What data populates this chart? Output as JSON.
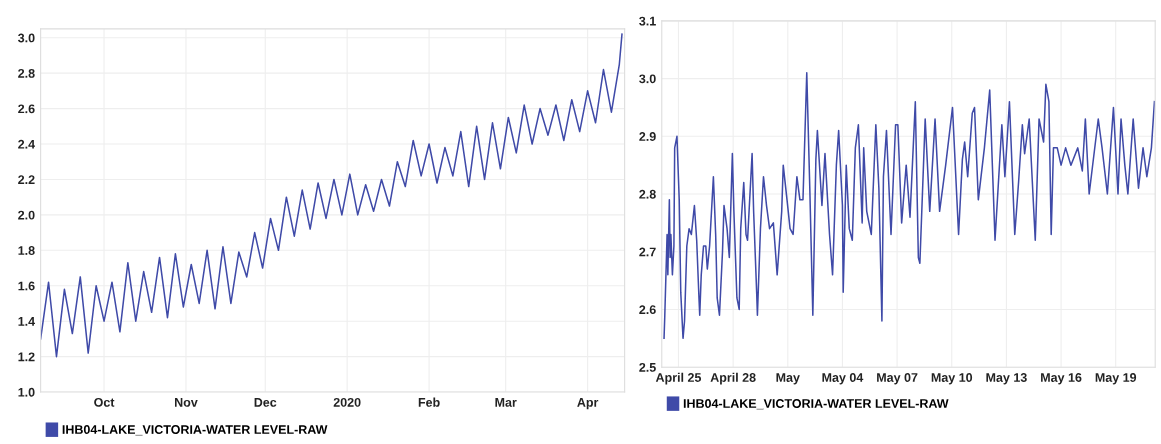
{
  "chart_data": [
    {
      "type": "line",
      "x": [
        "2019-09-07",
        "2019-09-10",
        "2019-09-13",
        "2019-09-16",
        "2019-09-19",
        "2019-09-22",
        "2019-09-25",
        "2019-09-28",
        "2019-10-01",
        "2019-10-04",
        "2019-10-07",
        "2019-10-10",
        "2019-10-13",
        "2019-10-16",
        "2019-10-19",
        "2019-10-22",
        "2019-10-25",
        "2019-10-28",
        "2019-10-31",
        "2019-11-03",
        "2019-11-06",
        "2019-11-09",
        "2019-11-12",
        "2019-11-15",
        "2019-11-18",
        "2019-11-21",
        "2019-11-24",
        "2019-11-27",
        "2019-11-30",
        "2019-12-03",
        "2019-12-06",
        "2019-12-09",
        "2019-12-12",
        "2019-12-15",
        "2019-12-18",
        "2019-12-21",
        "2019-12-24",
        "2019-12-27",
        "2019-12-30",
        "2020-01-02",
        "2020-01-05",
        "2020-01-08",
        "2020-01-11",
        "2020-01-14",
        "2020-01-17",
        "2020-01-20",
        "2020-01-23",
        "2020-01-26",
        "2020-01-29",
        "2020-02-01",
        "2020-02-04",
        "2020-02-07",
        "2020-02-10",
        "2020-02-13",
        "2020-02-16",
        "2020-02-19",
        "2020-02-22",
        "2020-02-25",
        "2020-02-28",
        "2020-03-02",
        "2020-03-05",
        "2020-03-08",
        "2020-03-11",
        "2020-03-14",
        "2020-03-17",
        "2020-03-20",
        "2020-03-23",
        "2020-03-26",
        "2020-03-29",
        "2020-04-01",
        "2020-04-04",
        "2020-04-07",
        "2020-04-10",
        "2020-04-13",
        "2020-04-14"
      ],
      "series": [
        {
          "name": "IHB04-LAKE_VICTORIA-WATER LEVEL-RAW",
          "color": "#3f4aa8",
          "values": [
            1.3,
            1.62,
            1.2,
            1.58,
            1.33,
            1.65,
            1.22,
            1.6,
            1.4,
            1.62,
            1.34,
            1.73,
            1.4,
            1.68,
            1.45,
            1.76,
            1.42,
            1.78,
            1.48,
            1.72,
            1.5,
            1.8,
            1.47,
            1.82,
            1.5,
            1.79,
            1.65,
            1.9,
            1.7,
            1.98,
            1.8,
            2.1,
            1.88,
            2.14,
            1.92,
            2.18,
            1.98,
            2.2,
            2.0,
            2.23,
            2.0,
            2.17,
            2.02,
            2.2,
            2.05,
            2.3,
            2.16,
            2.42,
            2.22,
            2.4,
            2.18,
            2.38,
            2.22,
            2.47,
            2.16,
            2.5,
            2.2,
            2.52,
            2.26,
            2.55,
            2.35,
            2.62,
            2.4,
            2.6,
            2.45,
            2.62,
            2.42,
            2.65,
            2.47,
            2.7,
            2.52,
            2.82,
            2.58,
            2.85,
            3.02
          ]
        }
      ],
      "xlim": [
        "2019-09-07",
        "2020-04-15"
      ],
      "xticks": [
        {
          "value": "2019-10-01",
          "label": "Oct"
        },
        {
          "value": "2019-11-01",
          "label": "Nov"
        },
        {
          "value": "2019-12-01",
          "label": "Dec"
        },
        {
          "value": "2020-01-01",
          "label": "2020"
        },
        {
          "value": "2020-02-01",
          "label": "Feb"
        },
        {
          "value": "2020-03-01",
          "label": "Mar"
        },
        {
          "value": "2020-04-01",
          "label": "Apr"
        }
      ],
      "ylim": [
        1.0,
        3.05
      ],
      "yticks": [
        {
          "value": 1.0,
          "label": "1.0"
        },
        1.2,
        1.4,
        1.6,
        1.8,
        {
          "value": 2.0,
          "label": "2.0"
        },
        2.2,
        2.4,
        2.6,
        2.8,
        {
          "value": 3.0,
          "label": "3.0"
        }
      ],
      "grid": true,
      "legend": "bottom"
    },
    {
      "type": "line",
      "x": [
        "2020-04-24T05:00",
        "2020-04-24T06:00",
        "2020-04-24T09:00",
        "2020-04-24T10:00",
        "2020-04-24T12:00",
        "2020-04-24T13:00",
        "2020-04-24T14:00",
        "2020-04-24T16:00",
        "2020-04-24T18:00",
        "2020-04-24T19:00",
        "2020-04-24T22:00",
        "2020-04-25T01:00",
        "2020-04-25T03:00",
        "2020-04-25T06:00",
        "2020-04-25T08:00",
        "2020-04-25T11:00",
        "2020-04-25T14:00",
        "2020-04-25T17:00",
        "2020-04-25T21:00",
        "2020-04-26T00:00",
        "2020-04-26T03:00",
        "2020-04-26T04:00",
        "2020-04-26T06:00",
        "2020-04-26T09:00",
        "2020-04-26T12:00",
        "2020-04-26T14:00",
        "2020-04-26T17:00",
        "2020-04-26T22:00",
        "2020-04-27T01:00",
        "2020-04-27T03:00",
        "2020-04-27T06:00",
        "2020-04-27T10:00",
        "2020-04-27T12:00",
        "2020-04-27T16:00",
        "2020-04-27T19:00",
        "2020-04-27T23:00",
        "2020-04-28T01:00",
        "2020-04-28T05:00",
        "2020-04-28T08:00",
        "2020-04-28T10:00",
        "2020-04-28T14:00",
        "2020-04-28T17:00",
        "2020-04-28T19:00",
        "2020-04-29T01:00",
        "2020-04-29T03:00",
        "2020-04-29T07:00",
        "2020-04-29T08:00",
        "2020-04-29T12:00",
        "2020-04-29T16:00",
        "2020-04-29T20:00",
        "2020-04-30T00:00",
        "2020-04-30T05:00",
        "2020-04-30T10:00",
        "2020-04-30T16:00",
        "2020-04-30T18:00",
        "2020-04-30T23:00",
        "2020-05-01T03:00",
        "2020-05-01T07:00",
        "2020-05-01T12:00",
        "2020-05-01T16:00",
        "2020-05-01T20:00",
        "2020-05-02T01:00",
        "2020-05-02T05:00",
        "2020-05-02T09:00",
        "2020-05-02T13:00",
        "2020-05-02T15:00",
        "2020-05-02T21:00",
        "2020-05-03T01:00",
        "2020-05-03T07:00",
        "2020-05-03T11:00",
        "2020-05-03T16:00",
        "2020-05-03T19:00",
        "2020-05-04T00:00",
        "2020-05-04T01:00",
        "2020-05-04T05:00",
        "2020-05-04T09:00",
        "2020-05-04T13:00",
        "2020-05-04T17:00",
        "2020-05-04T21:00",
        "2020-05-05T02:00",
        "2020-05-05T04:00",
        "2020-05-05T08:00",
        "2020-05-05T14:00",
        "2020-05-05T20:00",
        "2020-05-06T00:00",
        "2020-05-06T04:00",
        "2020-05-06T06:00",
        "2020-05-06T10:00",
        "2020-05-06T16:00",
        "2020-05-06T22:00",
        "2020-05-07T01:00",
        "2020-05-07T06:00",
        "2020-05-07T12:00",
        "2020-05-07T17:00",
        "2020-05-08T00:00",
        "2020-05-08T04:00",
        "2020-05-08T06:00",
        "2020-05-08T13:00",
        "2020-05-08T19:00",
        "2020-05-09T02:00",
        "2020-05-09T08:00",
        "2020-05-09T16:00",
        "2020-05-10T01:00",
        "2020-05-10T09:00",
        "2020-05-10T14:00",
        "2020-05-10T17:00",
        "2020-05-10T21:00",
        "2020-05-11T03:00",
        "2020-05-11T06:00",
        "2020-05-11T11:00",
        "2020-05-11T19:00",
        "2020-05-12T02:00",
        "2020-05-12T09:00",
        "2020-05-12T18:00",
        "2020-05-12T22:00",
        "2020-05-13T04:00",
        "2020-05-13T11:00",
        "2020-05-13T16:00",
        "2020-05-13T21:00",
        "2020-05-14T00:00",
        "2020-05-14T06:00",
        "2020-05-14T14:00",
        "2020-05-14T19:00",
        "2020-05-15T01:00",
        "2020-05-15T04:00",
        "2020-05-15T08:00",
        "2020-05-15T11:00",
        "2020-05-15T14:00",
        "2020-05-15T19:00",
        "2020-05-16T00:00",
        "2020-05-16T06:00",
        "2020-05-16T13:00",
        "2020-05-16T22:00",
        "2020-05-17T04:00",
        "2020-05-17T08:00",
        "2020-05-17T13:00",
        "2020-05-18T01:00",
        "2020-05-18T06:00",
        "2020-05-18T13:00",
        "2020-05-18T21:00",
        "2020-05-19T03:00",
        "2020-05-19T07:00",
        "2020-05-19T12:00",
        "2020-05-19T16:00",
        "2020-05-19T23:00",
        "2020-05-20T06:00",
        "2020-05-20T12:00",
        "2020-05-20T17:00",
        "2020-05-20T23:00",
        "2020-05-21T03:00"
      ],
      "series": [
        {
          "name": "IHB04-LAKE_VICTORIA-WATER LEVEL-RAW",
          "color": "#3f4aa8",
          "values": [
            2.55,
            2.59,
            2.73,
            2.66,
            2.79,
            2.69,
            2.73,
            2.66,
            2.71,
            2.88,
            2.9,
            2.79,
            2.63,
            2.55,
            2.58,
            2.71,
            2.74,
            2.73,
            2.78,
            2.72,
            2.62,
            2.59,
            2.66,
            2.71,
            2.71,
            2.67,
            2.71,
            2.83,
            2.73,
            2.62,
            2.59,
            2.7,
            2.78,
            2.74,
            2.69,
            2.87,
            2.77,
            2.62,
            2.6,
            2.74,
            2.82,
            2.73,
            2.72,
            2.87,
            2.77,
            2.63,
            2.59,
            2.74,
            2.83,
            2.78,
            2.74,
            2.75,
            2.66,
            2.77,
            2.85,
            2.79,
            2.74,
            2.73,
            2.83,
            2.79,
            2.79,
            3.01,
            2.81,
            2.59,
            2.86,
            2.91,
            2.78,
            2.87,
            2.73,
            2.66,
            2.85,
            2.91,
            2.78,
            2.63,
            2.85,
            2.74,
            2.72,
            2.88,
            2.92,
            2.75,
            2.88,
            2.77,
            2.73,
            2.92,
            2.81,
            2.58,
            2.83,
            2.91,
            2.73,
            2.92,
            2.92,
            2.75,
            2.85,
            2.76,
            2.96,
            2.69,
            2.68,
            2.93,
            2.77,
            2.93,
            2.77,
            2.85,
            2.95,
            2.73,
            2.86,
            2.89,
            2.83,
            2.94,
            2.95,
            2.79,
            2.88,
            2.98,
            2.72,
            2.92,
            2.83,
            2.96,
            2.73,
            2.82,
            2.92,
            2.87,
            2.93,
            2.72,
            2.93,
            2.89,
            2.99,
            2.96,
            2.73,
            2.88,
            2.88,
            2.85,
            2.88,
            2.85,
            2.88,
            2.84,
            2.93,
            2.8,
            2.93,
            2.88,
            2.8,
            2.95,
            2.8,
            2.93,
            2.85,
            2.8,
            2.93,
            2.81,
            2.88,
            2.83,
            2.88,
            2.96
          ]
        }
      ],
      "xlim": [
        "2020-04-24T02:00",
        "2020-05-21T04:00"
      ],
      "xticks": [
        {
          "value": "2020-04-25",
          "label": "April 25"
        },
        {
          "value": "2020-04-28",
          "label": "April 28"
        },
        {
          "value": "2020-05-01",
          "label": "May"
        },
        {
          "value": "2020-05-04",
          "label": "May 04"
        },
        {
          "value": "2020-05-07",
          "label": "May 07"
        },
        {
          "value": "2020-05-10",
          "label": "May 10"
        },
        {
          "value": "2020-05-13",
          "label": "May 13"
        },
        {
          "value": "2020-05-16",
          "label": "May 16"
        },
        {
          "value": "2020-05-19",
          "label": "May 19"
        }
      ],
      "ylim": [
        2.5,
        3.1
      ],
      "yticks": [
        2.5,
        2.6,
        2.7,
        2.8,
        2.9,
        {
          "value": 3.0,
          "label": "3.0"
        },
        3.1
      ],
      "grid": true,
      "legend": "bottom"
    }
  ]
}
